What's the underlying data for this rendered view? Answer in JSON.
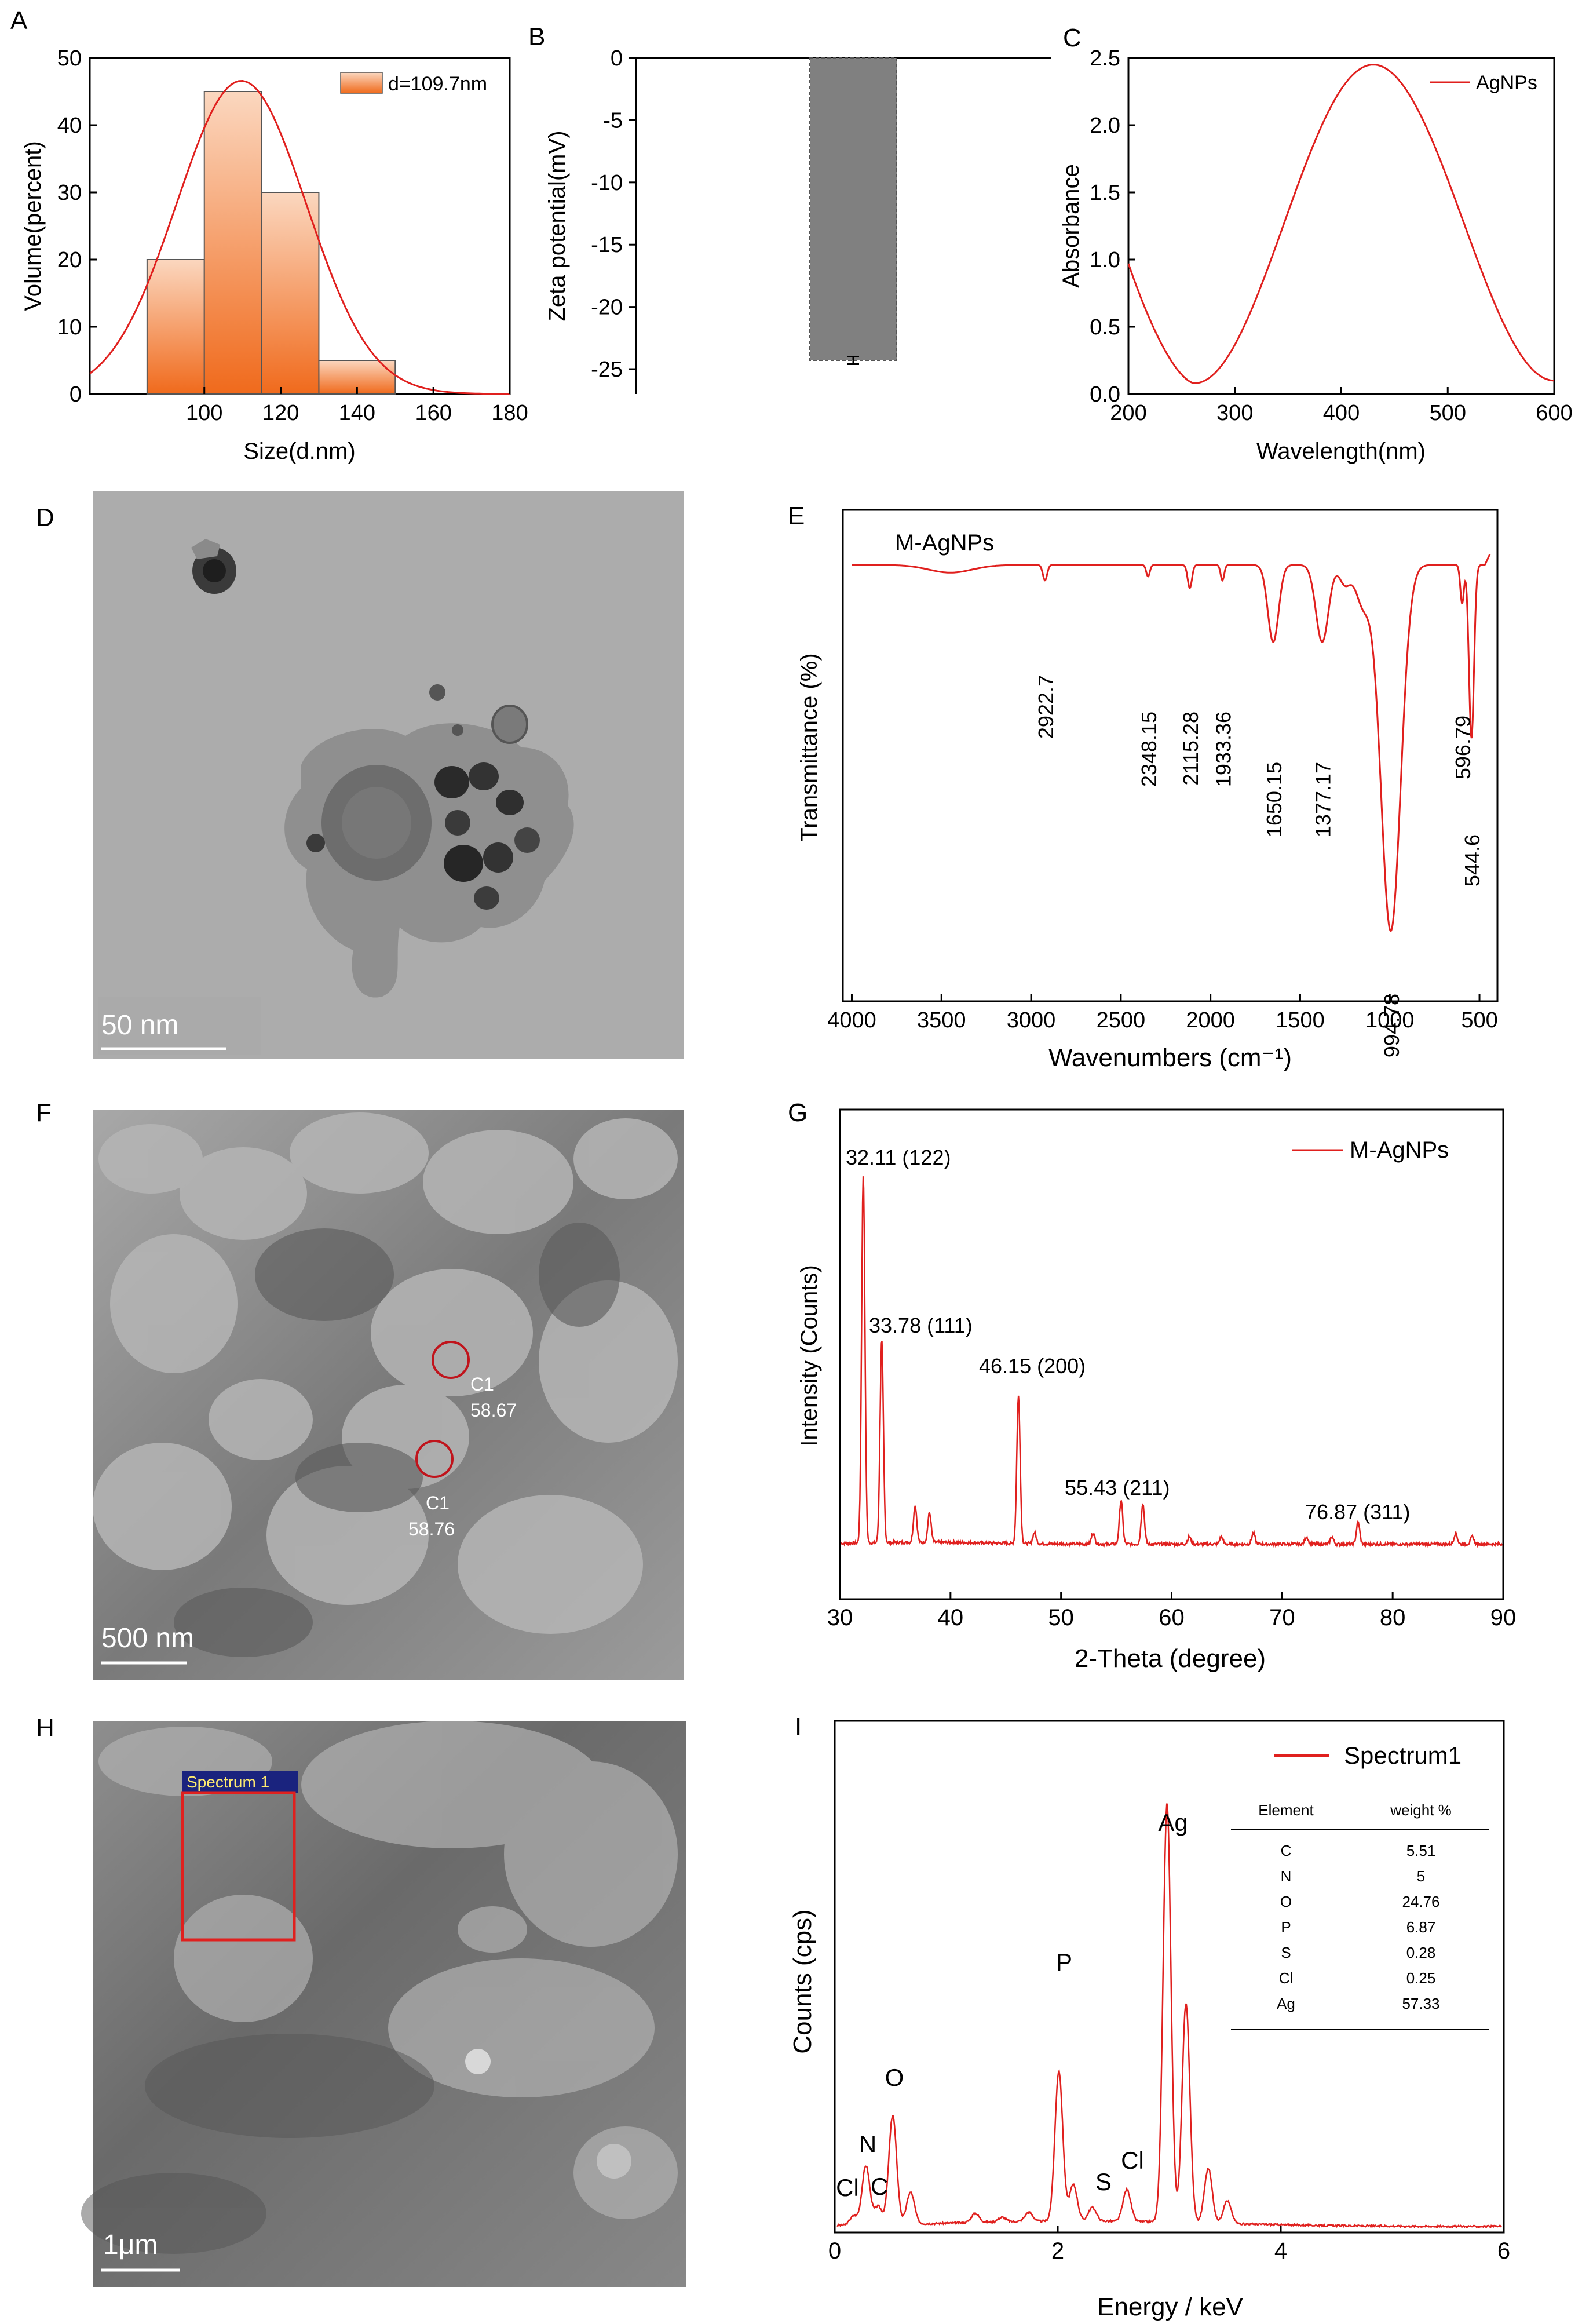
{
  "panels": {
    "A": "A",
    "B": "B",
    "C": "C",
    "D": "D",
    "E": "E",
    "F": "F",
    "G": "G",
    "H": "H",
    "I": "I"
  },
  "colors": {
    "red": "#e0201e",
    "bar_orange": "#f07a30",
    "bar_gray": "#808080",
    "tem_bg": "#a9a9a9",
    "sem_bg": "#8c8c8c",
    "scale_white": "#ffffff",
    "spectrum_box": "#1a237e"
  },
  "chart_data": [
    {
      "panel": "A",
      "type": "bar",
      "categories": [
        "90",
        "110",
        "120",
        "140"
      ],
      "bins": [
        [
          85,
          100
        ],
        [
          100,
          115
        ],
        [
          115,
          130
        ],
        [
          130,
          150
        ]
      ],
      "values": [
        20,
        45,
        30,
        5
      ],
      "fit_curve": {
        "type": "gaussian",
        "mean": 109.7,
        "sd": 17,
        "peak": 46.6
      },
      "legend": "d=109.7nm",
      "xlabel": "Size(d.nm)",
      "ylabel": "Volume(percent)",
      "xlim": [
        70,
        180
      ],
      "ylim": [
        0,
        50
      ],
      "xticks": [
        "100",
        "120",
        "140",
        "160",
        "180"
      ],
      "xtick_values": [
        100,
        120,
        140,
        160,
        180
      ],
      "yticks": [
        "0",
        "10",
        "20",
        "30",
        "40",
        "50"
      ],
      "ytick_values": [
        0,
        10,
        20,
        30,
        40,
        50
      ]
    },
    {
      "panel": "B",
      "type": "bar",
      "values": [
        -24.3
      ],
      "error": 0.3,
      "ylabel": "Zeta potential(mV)",
      "ylim": [
        -27,
        0
      ],
      "yticks": [
        "0",
        "-5",
        "-10",
        "-15",
        "-20",
        "-25"
      ],
      "ytick_values": [
        0,
        -5,
        -10,
        -15,
        -20,
        -25
      ]
    },
    {
      "panel": "C",
      "type": "line",
      "series": [
        {
          "name": "AgNPs"
        }
      ],
      "curve": {
        "min_x": 262,
        "min_y": 0.08,
        "peak_x": 430,
        "peak_y": 2.45,
        "start_y": 0.97,
        "end_y": 0.1
      },
      "xlabel": "Wavelength(nm)",
      "ylabel": "Absorbance",
      "xlim": [
        200,
        600
      ],
      "ylim": [
        0,
        2.5
      ],
      "xticks": [
        "200",
        "300",
        "400",
        "500",
        "600"
      ],
      "xtick_values": [
        200,
        300,
        400,
        500,
        600
      ],
      "yticks": [
        "0.0",
        "0.5",
        "1.0",
        "1.5",
        "2.0",
        "2.5"
      ],
      "ytick_values": [
        0,
        0.5,
        1.0,
        1.5,
        2.0,
        2.5
      ]
    },
    {
      "panel": "E",
      "type": "line",
      "series": [
        {
          "name": "M-AgNPs"
        }
      ],
      "peaks": [
        {
          "x": 2922.7,
          "depth": 0.04,
          "label": "2922.7"
        },
        {
          "x": 2348.15,
          "depth": 0.03,
          "label": "2348.15"
        },
        {
          "x": 2115.28,
          "depth": 0.06,
          "label": "2115.28"
        },
        {
          "x": 1933.36,
          "depth": 0.04,
          "label": "1933.36"
        },
        {
          "x": 1650.15,
          "depth": 0.2,
          "label": "1650.15"
        },
        {
          "x": 1377.17,
          "depth": 0.2,
          "label": "1377.17"
        },
        {
          "x": 994.78,
          "depth": 0.95,
          "label": "994.78"
        },
        {
          "x": 596.79,
          "depth": 0.1,
          "label": "596.79"
        },
        {
          "x": 544.6,
          "depth": 0.45,
          "label": "544.6"
        }
      ],
      "xlabel": "Wavenumbers (cm⁻¹)",
      "ylabel": "Transmittance (%)",
      "xlim": [
        4050,
        400
      ],
      "xticks": [
        "4000",
        "3500",
        "3000",
        "2500",
        "2000",
        "1500",
        "1000",
        "500"
      ],
      "xtick_values": [
        4000,
        3500,
        3000,
        2500,
        2000,
        1500,
        1000,
        500
      ]
    },
    {
      "panel": "G",
      "type": "line",
      "series": [
        {
          "name": "M-AgNPs"
        }
      ],
      "peaks": [
        {
          "x": 32.11,
          "height": 1.0,
          "label": "32.11 (122)"
        },
        {
          "x": 33.78,
          "height": 0.55,
          "label": "33.78 (111)"
        },
        {
          "x": 46.15,
          "height": 0.4,
          "label": "46.15 (200)"
        },
        {
          "x": 55.43,
          "height": 0.12,
          "label": "55.43 (211)"
        },
        {
          "x": 76.87,
          "height": 0.06,
          "label": "76.87 (311)"
        }
      ],
      "minor_peaks": [
        {
          "x": 36.8,
          "height": 0.1
        },
        {
          "x": 38.1,
          "height": 0.08
        },
        {
          "x": 47.6,
          "height": 0.03
        },
        {
          "x": 52.9,
          "height": 0.03
        },
        {
          "x": 57.4,
          "height": 0.11
        },
        {
          "x": 61.6,
          "height": 0.02
        },
        {
          "x": 64.5,
          "height": 0.02
        },
        {
          "x": 67.4,
          "height": 0.03
        },
        {
          "x": 72.2,
          "height": 0.02
        },
        {
          "x": 74.5,
          "height": 0.02
        },
        {
          "x": 85.7,
          "height": 0.03
        },
        {
          "x": 87.2,
          "height": 0.02
        }
      ],
      "xlabel": "2-Theta (degree)",
      "ylabel": "Intensity (Counts)",
      "xlim": [
        30,
        90
      ],
      "xticks": [
        "30",
        "40",
        "50",
        "60",
        "70",
        "80",
        "90"
      ],
      "xtick_values": [
        30,
        40,
        50,
        60,
        70,
        80,
        90
      ]
    },
    {
      "panel": "I",
      "type": "line",
      "series": [
        {
          "name": "Spectrum1"
        }
      ],
      "peaks": [
        {
          "x": 0.28,
          "height": 0.13,
          "label": "N"
        },
        {
          "x": 0.52,
          "height": 0.24,
          "label": "O"
        },
        {
          "x": 2.01,
          "height": 0.33,
          "label": "P"
        },
        {
          "x": 2.31,
          "height": 0.03,
          "label": "S"
        },
        {
          "x": 2.62,
          "height": 0.07,
          "label": "Cl"
        },
        {
          "x": 2.98,
          "height": 0.92,
          "label": "Ag"
        }
      ],
      "extra_labels": [
        {
          "x": 0.1,
          "label": "Cl"
        },
        {
          "x": 0.42,
          "label": "C"
        }
      ],
      "table": {
        "headers": [
          "Element",
          "weight %"
        ],
        "rows": [
          [
            "C",
            "5.51"
          ],
          [
            "N",
            "5"
          ],
          [
            "O",
            "24.76"
          ],
          [
            "P",
            "6.87"
          ],
          [
            "S",
            "0.28"
          ],
          [
            "Cl",
            "0.25"
          ],
          [
            "Ag",
            "57.33"
          ]
        ]
      },
      "xlabel": "Energy / keV",
      "ylabel": "Counts (cps)",
      "xlim": [
        0,
        6
      ],
      "xticks": [
        "0",
        "2",
        "4",
        "6"
      ],
      "xtick_values": [
        0,
        2,
        4,
        6
      ]
    }
  ],
  "images": {
    "D": {
      "scale_bar": "50 nm"
    },
    "F": {
      "scale_bar": "500 nm",
      "markers": [
        {
          "label": "C1",
          "value": "58.67"
        },
        {
          "label": "C1",
          "value": "58.76"
        }
      ]
    },
    "H": {
      "scale_bar": "1μm",
      "region": "Spectrum 1"
    }
  }
}
